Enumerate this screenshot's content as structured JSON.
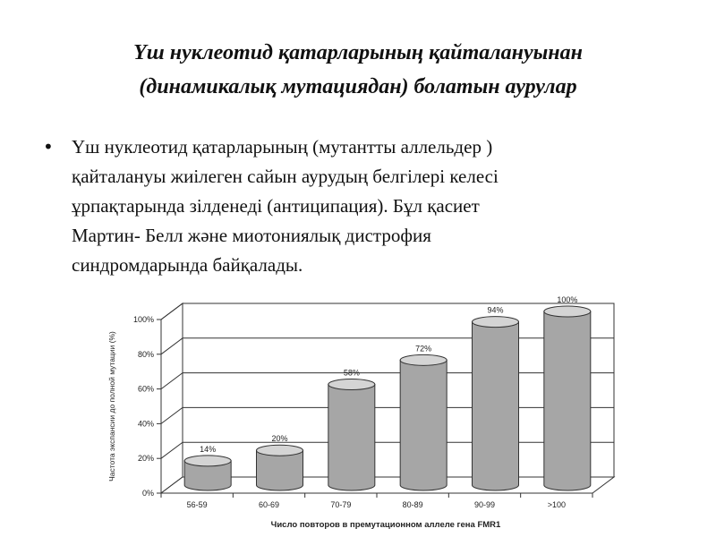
{
  "slide": {
    "title_lines": [
      "Үш нуклеотид қатарларының қайталануынан",
      "(динамикалық мутациядан) болатын аурулар"
    ],
    "bullet_lines": [
      "Үш нуклеотид қатарларының (мутантты аллельдер )",
      "қайталануы жиілеген сайын  аурудың белгілері келесі",
      "ұрпақтарында зілденеді (антиципация). Бұл қасиет",
      "Мартин- Белл және миотониялық дистрофия",
      "синдромдарында байқалады."
    ]
  },
  "chart_data": {
    "type": "bar",
    "style": "3d-cylinder",
    "categories": [
      "56-59",
      "60-69",
      "70-79",
      "80-89",
      "90-99",
      ">100"
    ],
    "values": [
      14,
      20,
      58,
      72,
      94,
      100
    ],
    "value_labels": [
      "14%",
      "20%",
      "58%",
      "72%",
      "94%",
      "100%"
    ],
    "y_ticks": [
      "0%",
      "20%",
      "40%",
      "60%",
      "80%",
      "100%"
    ],
    "ylim": [
      0,
      100
    ],
    "xlabel": "Число повторов в премутационном аллеле гена FMR1",
    "ylabel": "Частота экспансии до полной мутации (%)",
    "grid": true,
    "legend": false,
    "colors": {
      "bar_side": "#a6a6a6",
      "bar_top": "#d4d4d4",
      "axis": "#333333",
      "text": "#222222"
    }
  }
}
